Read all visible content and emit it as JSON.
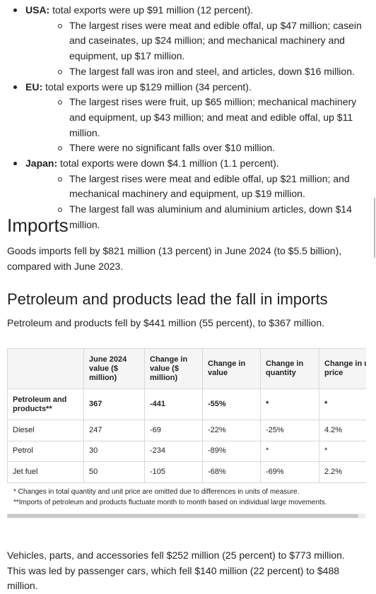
{
  "exports": [
    {
      "label": "USA:",
      "text": "total exports were up $91 million (12 percent).",
      "items": [
        "The largest rises were meat and edible offal, up $47 million; casein and caseinates, up $24 million; and mechanical machinery and equipment, up $17 million.",
        "The largest fall was iron and steel, and articles, down $16 million."
      ]
    },
    {
      "label": "EU:",
      "text": "total exports were up $129 million (34 percent).",
      "items": [
        "The largest rises were fruit, up $65 million; mechanical machinery and equipment, up $43 million; and meat and edible offal, up $11 million.",
        "There were no significant falls over $10 million."
      ]
    },
    {
      "label": "Japan:",
      "text": "total exports were down $4.1 million (1.1 percent).",
      "items": [
        "The largest rises were meat and edible offal, up $21 million; and mechanical machinery and equipment, up $19 million.",
        "The largest fall was aluminium and aluminium articles, down $14 million."
      ]
    }
  ],
  "imports": {
    "title": "Imports",
    "text": "Goods imports fell by $821 million (13 percent) in June 2024 (to $5.5 billion), compared with June 2023."
  },
  "petroleum": {
    "title": "Petroleum and products lead the fall in imports",
    "text": "Petroleum and products fell by $441 million (55 percent), to $367 million."
  },
  "table": {
    "header": [
      "June 2024 value ($ million)",
      "Change in value ($ million)",
      "Change in value",
      "Change in quantity",
      "Change in unit price"
    ],
    "rows": [
      [
        "Petroleum and products**",
        "367",
        "-441",
        "-55%",
        "*",
        "*"
      ],
      [
        "Diesel",
        "247",
        "-69",
        "-22%",
        "-25%",
        "4.2%"
      ],
      [
        "Petrol",
        "30",
        "-234",
        "-89%",
        "*",
        "*"
      ],
      [
        "Jet fuel",
        "50",
        "-105",
        "-68%",
        "-69%",
        "2.2%"
      ]
    ],
    "notes": [
      "* Changes in total quantity and unit price are omitted due to differences in units of measure.",
      "**Imports of petroleum and products fluctuate month to month based on individual large movements."
    ]
  },
  "vehicles": {
    "text": "Vehicles, parts, and accessories fell $252 million (25 percent) to $773 million. This was led by passenger cars, which fell $140 million (22 percent) to $488 million."
  }
}
